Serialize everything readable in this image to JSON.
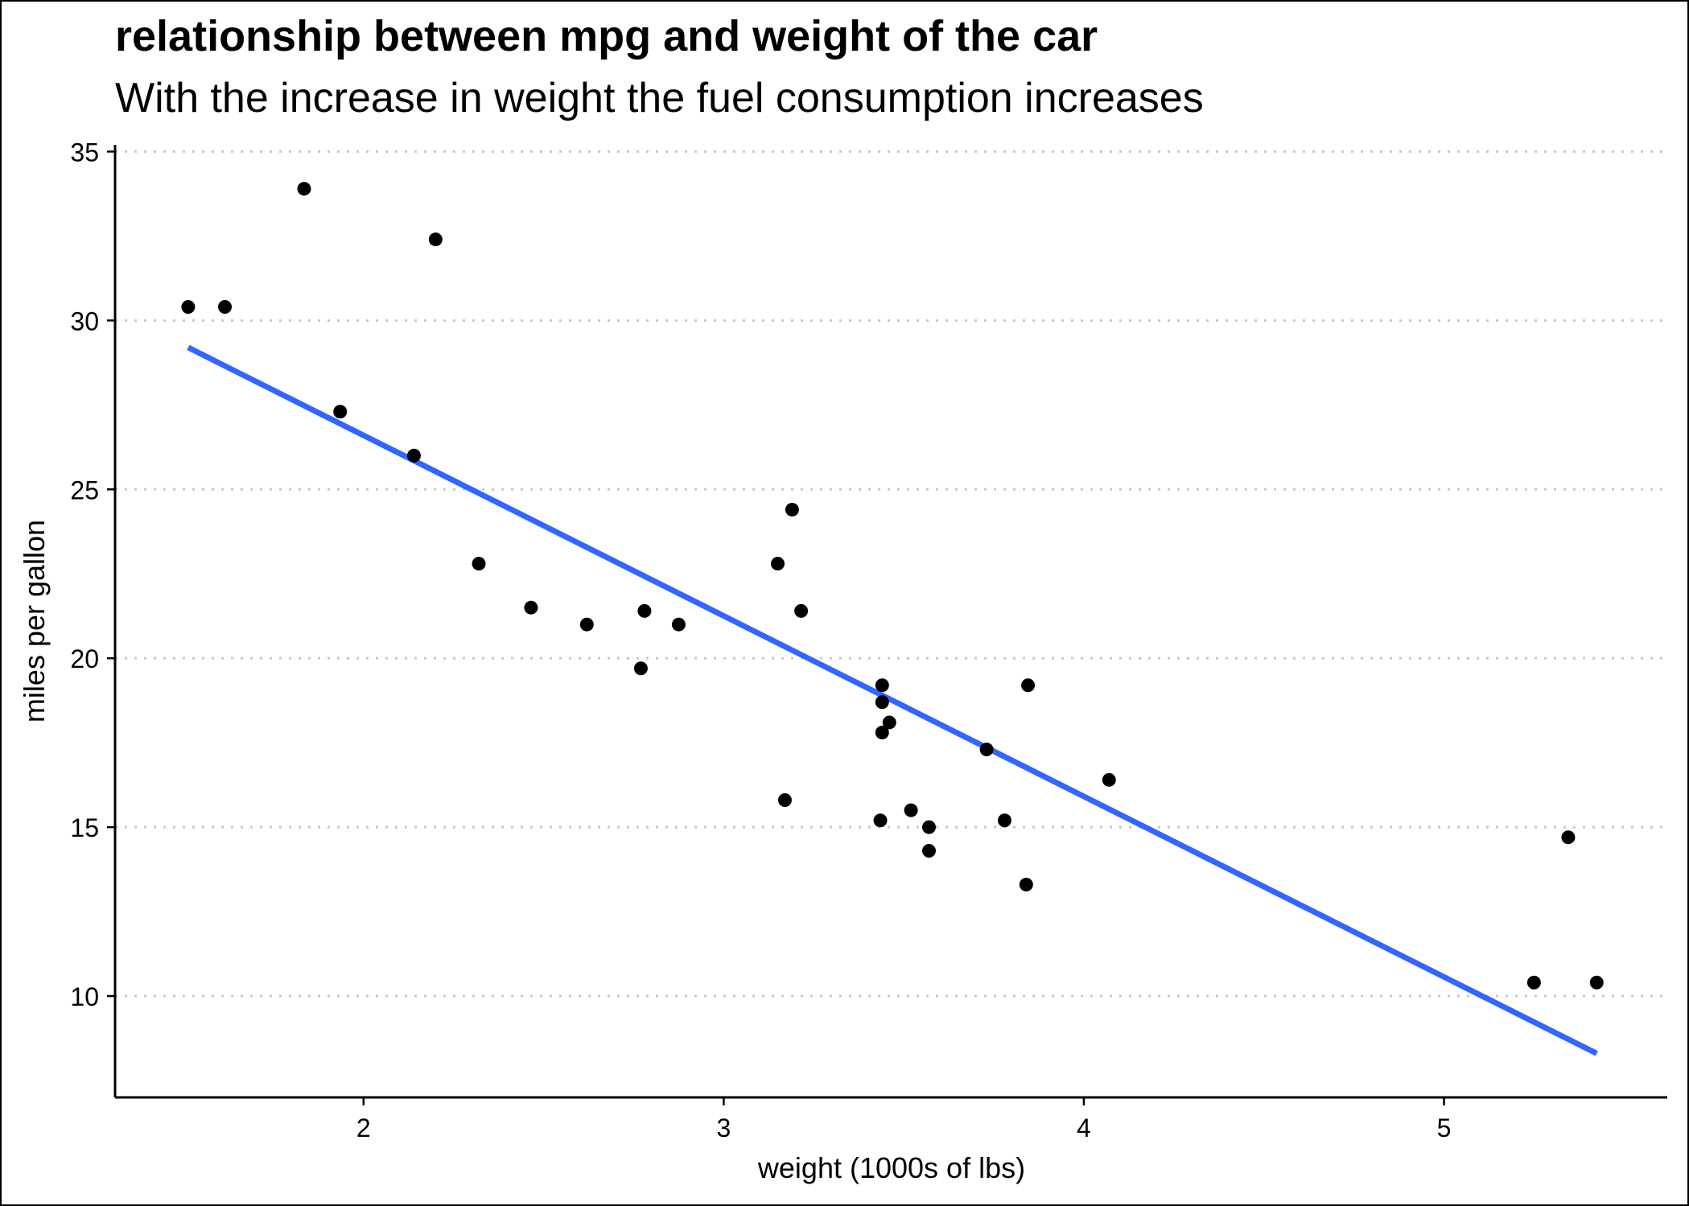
{
  "chart_data": {
    "type": "scatter",
    "title": "relationship between mpg and weight of the car",
    "subtitle": "With the increase in weight the fuel consumption increases",
    "xlabel": "weight (1000s of lbs)",
    "ylabel": "miles per gallon",
    "xlim": [
      1.31,
      5.62
    ],
    "ylim": [
      7.0,
      35.2
    ],
    "x_ticks": [
      2,
      3,
      4,
      5
    ],
    "y_ticks": [
      10,
      15,
      20,
      25,
      30,
      35
    ],
    "grid": "horizontal dotted",
    "colors": {
      "points": "#000000",
      "trend_line": "#3366FF",
      "grid": "#c8c8c8"
    },
    "points": [
      {
        "x": 2.62,
        "y": 21.0
      },
      {
        "x": 2.875,
        "y": 21.0
      },
      {
        "x": 2.32,
        "y": 22.8
      },
      {
        "x": 3.215,
        "y": 21.4
      },
      {
        "x": 3.44,
        "y": 18.7
      },
      {
        "x": 3.46,
        "y": 18.1
      },
      {
        "x": 3.57,
        "y": 14.3
      },
      {
        "x": 3.19,
        "y": 24.4
      },
      {
        "x": 3.15,
        "y": 22.8
      },
      {
        "x": 3.44,
        "y": 19.2
      },
      {
        "x": 3.44,
        "y": 17.8
      },
      {
        "x": 4.07,
        "y": 16.4
      },
      {
        "x": 3.73,
        "y": 17.3
      },
      {
        "x": 3.78,
        "y": 15.2
      },
      {
        "x": 5.25,
        "y": 10.4
      },
      {
        "x": 5.424,
        "y": 10.4
      },
      {
        "x": 5.345,
        "y": 14.7
      },
      {
        "x": 2.2,
        "y": 32.4
      },
      {
        "x": 1.615,
        "y": 30.4
      },
      {
        "x": 1.835,
        "y": 33.9
      },
      {
        "x": 2.465,
        "y": 21.5
      },
      {
        "x": 3.52,
        "y": 15.5
      },
      {
        "x": 3.435,
        "y": 15.2
      },
      {
        "x": 3.84,
        "y": 13.3
      },
      {
        "x": 3.845,
        "y": 19.2
      },
      {
        "x": 1.935,
        "y": 27.3
      },
      {
        "x": 2.14,
        "y": 26.0
      },
      {
        "x": 1.513,
        "y": 30.4
      },
      {
        "x": 3.17,
        "y": 15.8
      },
      {
        "x": 2.77,
        "y": 19.7
      },
      {
        "x": 3.57,
        "y": 15.0
      },
      {
        "x": 2.78,
        "y": 21.4
      }
    ],
    "trend_line": {
      "x": [
        1.513,
        5.424
      ],
      "y": [
        29.2,
        8.3
      ]
    }
  }
}
